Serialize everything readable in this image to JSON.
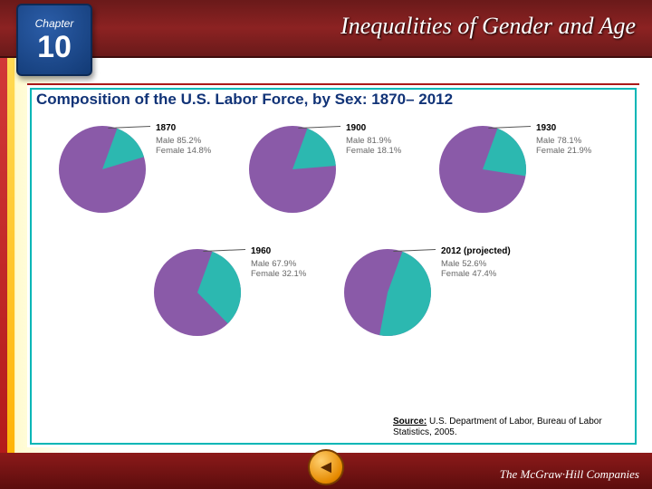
{
  "chapter": {
    "label": "Chapter",
    "number": "10"
  },
  "header_title": "Inequalities of Gender and Age",
  "chart": {
    "title": "Composition of the U.S. Labor Force, by Sex: 1870– 2012",
    "male_color": "#8a5aa8",
    "female_color": "#2cb8b0",
    "pies": [
      {
        "year": "1870",
        "male": 85.2,
        "female": 14.8,
        "male_label": "Male 85.2%",
        "female_label": "Female 14.8%"
      },
      {
        "year": "1900",
        "male": 81.9,
        "female": 18.1,
        "male_label": "Male 81.9%",
        "female_label": "Female 18.1%"
      },
      {
        "year": "1930",
        "male": 78.1,
        "female": 21.9,
        "male_label": "Male 78.1%",
        "female_label": "Female 21.9%"
      },
      {
        "year": "1960",
        "male": 67.9,
        "female": 32.1,
        "male_label": "Male 67.9%",
        "female_label": "Female 32.1%"
      },
      {
        "year": "2012 (projected)",
        "male": 52.6,
        "female": 47.4,
        "male_label": "Male 52.6%",
        "female_label": "Female 47.4%"
      }
    ]
  },
  "source": {
    "label": "Source:",
    "text": " U.S. Department of Labor, Bureau of Labor Statistics, 2005."
  },
  "publisher": "The McGraw·Hill Companies",
  "nav_icon": "◄"
}
